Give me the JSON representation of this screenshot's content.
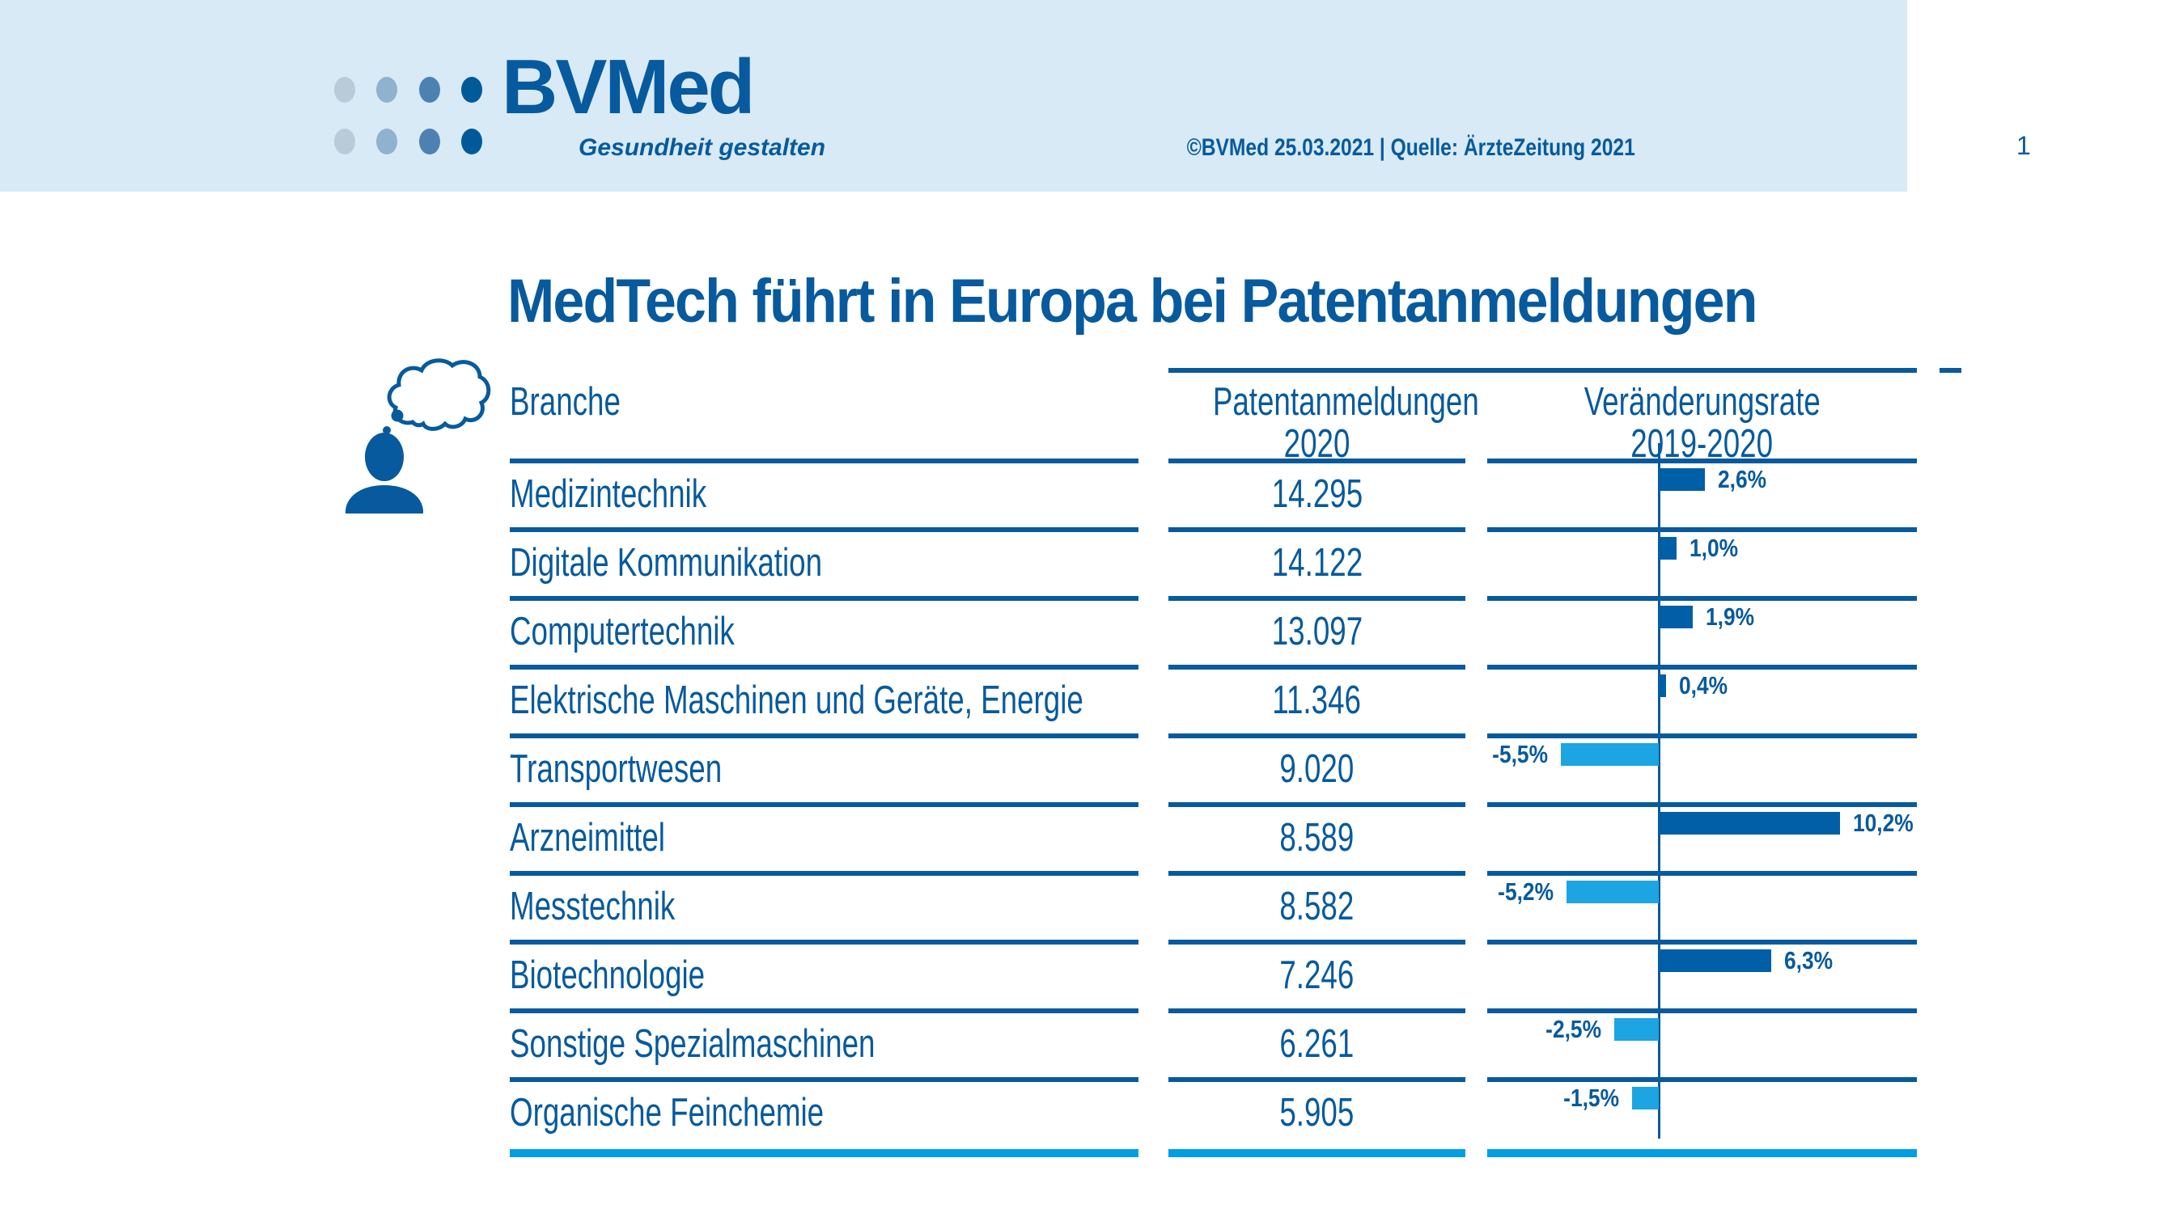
{
  "colors": {
    "brand_blue": "#075a9d",
    "bar_positive": "#005fa6",
    "bar_negative": "#1da4e2",
    "bottom_line_cyan": "#009ee3",
    "header_band": "#d8eaf6",
    "logo_dot_shades": [
      "#b9cbd9",
      "#8fb2ce",
      "#4d81b1",
      "#005a9a"
    ]
  },
  "header": {
    "logo": {
      "wordmark_bv": "BV",
      "wordmark_med": "Med",
      "tagline": "Gesundheit gestalten"
    },
    "copyright": "©BVMed 25.03.2021 | Quelle: ÄrzteZeitung 2021",
    "page_number": "1"
  },
  "title": "MedTech führt in Europa bei Patentanmeldungen",
  "table": {
    "columns": {
      "branche": "Branche",
      "patent_line1": "Patentanmeldungen",
      "patent_line2": "2020",
      "change_line1": "Veränderungsrate",
      "change_line2": "2019-2020"
    },
    "rows": [
      {
        "branche": "Medizintechnik",
        "patente": "14.295",
        "change_pct": 2.6,
        "change_label": "2,6%"
      },
      {
        "branche": "Digitale Kommunikation",
        "patente": "14.122",
        "change_pct": 1.0,
        "change_label": "1,0%"
      },
      {
        "branche": "Computertechnik",
        "patente": "13.097",
        "change_pct": 1.9,
        "change_label": "1,9%"
      },
      {
        "branche": "Elektrische Maschinen und Geräte, Energie",
        "patente": "11.346",
        "change_pct": 0.4,
        "change_label": "0,4%"
      },
      {
        "branche": "Transportwesen",
        "patente": "9.020",
        "change_pct": -5.5,
        "change_label": "-5,5%"
      },
      {
        "branche": "Arzneimittel",
        "patente": "8.589",
        "change_pct": 10.2,
        "change_label": "10,2%"
      },
      {
        "branche": "Messtechnik",
        "patente": "8.582",
        "change_pct": -5.2,
        "change_label": "-5,2%"
      },
      {
        "branche": "Biotechnologie",
        "patente": "7.246",
        "change_pct": 6.3,
        "change_label": "6,3%"
      },
      {
        "branche": "Sonstige Spezialmaschinen",
        "patente": "6.261",
        "change_pct": -2.5,
        "change_label": "-2,5%"
      },
      {
        "branche": "Organische Feinchemie",
        "patente": "5.905",
        "change_pct": -1.5,
        "change_label": "-1,5%"
      }
    ]
  },
  "chart_data": {
    "type": "bar",
    "orientation": "horizontal",
    "title": "MedTech führt in Europa bei Patentanmeldungen",
    "categories": [
      "Medizintechnik",
      "Digitale Kommunikation",
      "Computertechnik",
      "Elektrische Maschinen und Geräte, Energie",
      "Transportwesen",
      "Arzneimittel",
      "Messtechnik",
      "Biotechnologie",
      "Sonstige Spezialmaschinen",
      "Organische Feinchemie"
    ],
    "series": [
      {
        "name": "Patentanmeldungen 2020",
        "values": [
          14295,
          14122,
          13097,
          11346,
          9020,
          8589,
          8582,
          7246,
          6261,
          5905
        ]
      },
      {
        "name": "Veränderungsrate 2019-2020 (%)",
        "values": [
          2.6,
          1.0,
          1.9,
          0.4,
          -5.5,
          10.2,
          -5.2,
          6.3,
          -2.5,
          -1.5
        ]
      }
    ],
    "xlabel": "Veränderungsrate 2019-2020",
    "ylabel": "Branche",
    "xlim": [
      -8.5,
      14.5
    ],
    "zero_axis_line": true,
    "grid": false,
    "legend_position": "none",
    "data_labels": [
      "2,6%",
      "1,0%",
      "1,9%",
      "0,4%",
      "-5,5%",
      "10,2%",
      "-5,2%",
      "6,3%",
      "-2,5%",
      "-1,5%"
    ]
  }
}
